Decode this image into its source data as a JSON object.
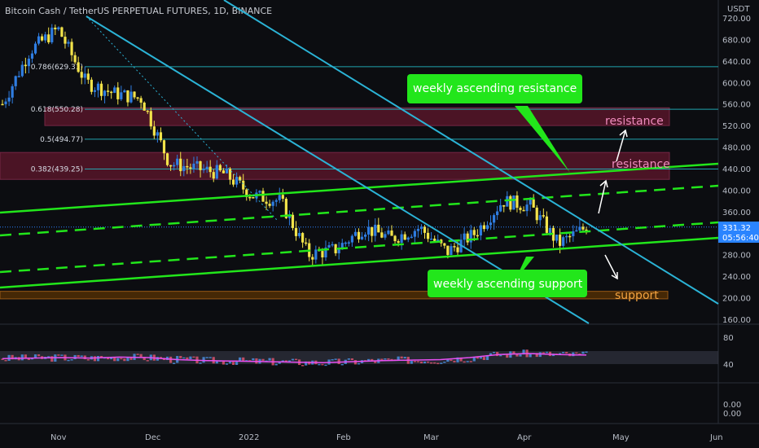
{
  "header": {
    "title": "Bitcoin Cash / TetherUS PERPETUAL FUTURES, 1D, BINANCE",
    "currency": "USDT"
  },
  "price_tag": {
    "value": "331.32",
    "countdown": "05:56:40"
  },
  "colors": {
    "background": "#0c0d11",
    "candle_up": "#2f7de1",
    "candle_down": "#f2e34a",
    "trend_green": "#22e61b",
    "trend_cyan": "#2bb3d6",
    "fib_line": "#23b4bf",
    "resistance_zone": "#8b1b3a",
    "support_zone": "#6b3a00",
    "rsi_ma": "#e84ff2",
    "price_tag": "#2a84ff"
  },
  "annotations": {
    "weekly_resistance": "weekly ascending resistance",
    "weekly_support": "weekly ascending support",
    "resistance_upper": "resistance",
    "resistance_lower": "resistance",
    "support": "support"
  },
  "fib_labels": [
    "0.786(629.31)",
    "0.618(550.28)",
    "0.5(494.77)",
    "0.382(439.25)"
  ],
  "chart_data": {
    "type": "line",
    "title": "Bitcoin Cash / TetherUS PERPETUAL FUTURES, 1D, BINANCE",
    "y_ticks": [
      720,
      680,
      640,
      600,
      560,
      520,
      480,
      440,
      400,
      360,
      320,
      280,
      240,
      200,
      160
    ],
    "ylim": [
      155,
      745
    ],
    "x_ticks": [
      "Nov",
      "Dec",
      "2022",
      "Feb",
      "Mar",
      "Apr",
      "May",
      "Jun"
    ],
    "fib_levels": [
      629.31,
      550.28,
      494.77,
      439.25
    ],
    "resistance_zones": [
      [
        520,
        553
      ],
      [
        420,
        470
      ]
    ],
    "support_zone": [
      198,
      212
    ],
    "approx_close_path": [
      {
        "x": "Oct 28",
        "y": 560
      },
      {
        "x": "Nov 5",
        "y": 660
      },
      {
        "x": "Nov 12",
        "y": 700
      },
      {
        "x": "Nov 18",
        "y": 600
      },
      {
        "x": "Nov 26",
        "y": 580
      },
      {
        "x": "Dec 3",
        "y": 570
      },
      {
        "x": "Dec 5",
        "y": 450
      },
      {
        "x": "Dec 15",
        "y": 440
      },
      {
        "x": "Dec 31",
        "y": 430
      },
      {
        "x": "Jan 8",
        "y": 390
      },
      {
        "x": "Jan 15",
        "y": 380
      },
      {
        "x": "Jan 22",
        "y": 280
      },
      {
        "x": "Feb 1",
        "y": 290
      },
      {
        "x": "Feb 10",
        "y": 330
      },
      {
        "x": "Feb 20",
        "y": 310
      },
      {
        "x": "Mar 1",
        "y": 330
      },
      {
        "x": "Mar 10",
        "y": 285
      },
      {
        "x": "Mar 20",
        "y": 320
      },
      {
        "x": "Mar 28",
        "y": 380
      },
      {
        "x": "Apr 5",
        "y": 370
      },
      {
        "x": "Apr 12",
        "y": 300
      },
      {
        "x": "Apr 20",
        "y": 331.32
      }
    ],
    "rsi": {
      "ticks": [
        80,
        40
      ],
      "ylim": [
        0,
        100
      ],
      "ma_path": [
        48,
        49,
        50,
        49,
        51,
        50,
        46,
        44,
        43,
        42,
        41,
        40,
        42,
        44,
        45,
        46,
        50,
        56,
        58,
        56,
        55
      ]
    },
    "lower_pane_ticks": [
      "0.00",
      "0.00"
    ]
  }
}
